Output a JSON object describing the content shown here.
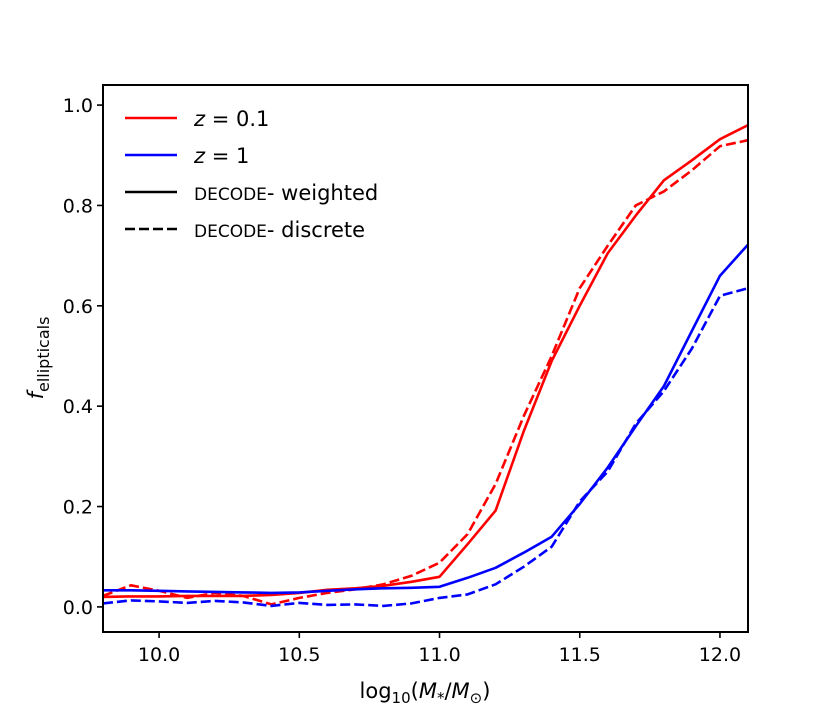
{
  "chart_data": {
    "type": "line",
    "title": "",
    "xlabel": "log10(M*/M⊙)",
    "ylabel": "f_ellipticals",
    "xlim": [
      9.8,
      12.1
    ],
    "ylim": [
      -0.05,
      1.04
    ],
    "xticks": [
      10.0,
      10.5,
      11.0,
      11.5,
      12.0
    ],
    "xtick_labels": [
      "10.0",
      "10.5",
      "11.0",
      "11.5",
      "12.0"
    ],
    "yticks": [
      0.0,
      0.2,
      0.4,
      0.6,
      0.8,
      1.0
    ],
    "ytick_labels": [
      "0.0",
      "0.2",
      "0.4",
      "0.6",
      "0.8",
      "1.0"
    ],
    "grid": false,
    "legend_position": "top-left",
    "legend": [
      {
        "math": "z",
        "text": " = 0.1",
        "color": "#ff0000",
        "style": "solid"
      },
      {
        "math": "z",
        "text": " = 1",
        "color": "#0000ff",
        "style": "solid"
      },
      {
        "prefix": "DECODE",
        "text": "- weighted",
        "color": "#000000",
        "style": "solid"
      },
      {
        "prefix": "DECODE",
        "text": "- discrete",
        "color": "#000000",
        "style": "dashed"
      }
    ],
    "series": [
      {
        "name": "z = 0.1 DECODE weighted",
        "color": "#ff0000",
        "style": "solid",
        "x": [
          9.8,
          9.9,
          10.0,
          10.1,
          10.2,
          10.3,
          10.4,
          10.5,
          10.6,
          10.7,
          10.8,
          10.9,
          11.0,
          11.1,
          11.2,
          11.3,
          11.4,
          11.5,
          11.6,
          11.7,
          11.8,
          11.9,
          12.0,
          12.1
        ],
        "y": [
          0.02,
          0.021,
          0.021,
          0.022,
          0.022,
          0.022,
          0.024,
          0.028,
          0.034,
          0.037,
          0.042,
          0.05,
          0.06,
          0.125,
          0.192,
          0.35,
          0.49,
          0.6,
          0.705,
          0.78,
          0.85,
          0.89,
          0.932,
          0.96
        ]
      },
      {
        "name": "z = 0.1 DECODE discrete",
        "color": "#ff0000",
        "style": "dashed",
        "x": [
          9.8,
          9.9,
          10.0,
          10.1,
          10.2,
          10.3,
          10.4,
          10.5,
          10.6,
          10.7,
          10.8,
          10.9,
          11.0,
          11.1,
          11.2,
          11.3,
          11.4,
          11.5,
          11.6,
          11.7,
          11.8,
          11.9,
          12.0,
          12.1
        ],
        "y": [
          0.022,
          0.043,
          0.032,
          0.018,
          0.028,
          0.022,
          0.005,
          0.018,
          0.028,
          0.035,
          0.045,
          0.062,
          0.088,
          0.145,
          0.245,
          0.38,
          0.5,
          0.635,
          0.72,
          0.8,
          0.828,
          0.87,
          0.918,
          0.93
        ]
      },
      {
        "name": "z = 1 DECODE weighted",
        "color": "#0000ff",
        "style": "solid",
        "x": [
          9.8,
          9.9,
          10.0,
          10.1,
          10.2,
          10.3,
          10.4,
          10.5,
          10.6,
          10.7,
          10.8,
          10.9,
          11.0,
          11.1,
          11.2,
          11.3,
          11.4,
          11.5,
          11.6,
          11.7,
          11.8,
          11.9,
          12.0,
          12.1
        ],
        "y": [
          0.033,
          0.033,
          0.032,
          0.031,
          0.03,
          0.029,
          0.028,
          0.029,
          0.032,
          0.035,
          0.037,
          0.038,
          0.04,
          0.058,
          0.078,
          0.108,
          0.14,
          0.205,
          0.278,
          0.36,
          0.44,
          0.55,
          0.66,
          0.722
        ]
      },
      {
        "name": "z = 1 DECODE discrete",
        "color": "#0000ff",
        "style": "dashed",
        "x": [
          9.8,
          9.9,
          10.0,
          10.1,
          10.2,
          10.3,
          10.4,
          10.5,
          10.6,
          10.7,
          10.8,
          10.9,
          11.0,
          11.1,
          11.2,
          11.3,
          11.4,
          11.5,
          11.6,
          11.7,
          11.8,
          11.9,
          12.0,
          12.1
        ],
        "y": [
          0.007,
          0.013,
          0.011,
          0.008,
          0.012,
          0.009,
          0.002,
          0.008,
          0.004,
          0.005,
          0.002,
          0.007,
          0.018,
          0.025,
          0.045,
          0.08,
          0.12,
          0.21,
          0.27,
          0.365,
          0.43,
          0.515,
          0.62,
          0.635
        ]
      }
    ]
  }
}
